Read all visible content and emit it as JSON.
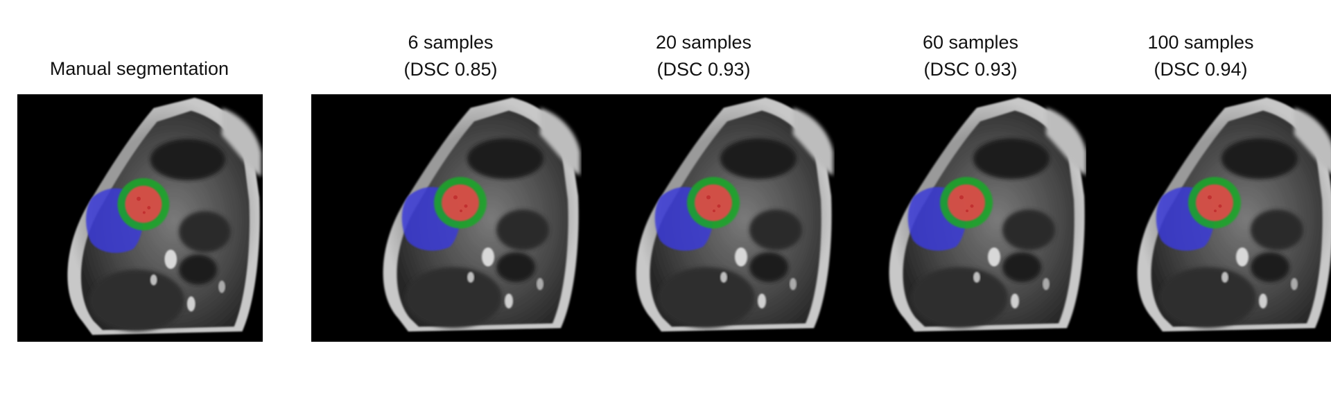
{
  "panels": [
    {
      "title": "Manual segmentation",
      "subtitle": ""
    },
    {
      "title": "6 samples",
      "subtitle": "(DSC 0.85)"
    },
    {
      "title": "20 samples",
      "subtitle": "(DSC 0.93)"
    },
    {
      "title": "60 samples",
      "subtitle": "(DSC 0.93)"
    },
    {
      "title": "100 samples",
      "subtitle": "(DSC 0.94)"
    }
  ],
  "colors": {
    "background": "#ffffff",
    "image_background": "#000000",
    "right_ventricle_overlay": "#3a3ad8",
    "myocardium_overlay": "#1fa52a",
    "left_ventricle_overlay": "#e04848"
  },
  "image_type": "cardiac MRI short-axis slice with segmentation overlay"
}
